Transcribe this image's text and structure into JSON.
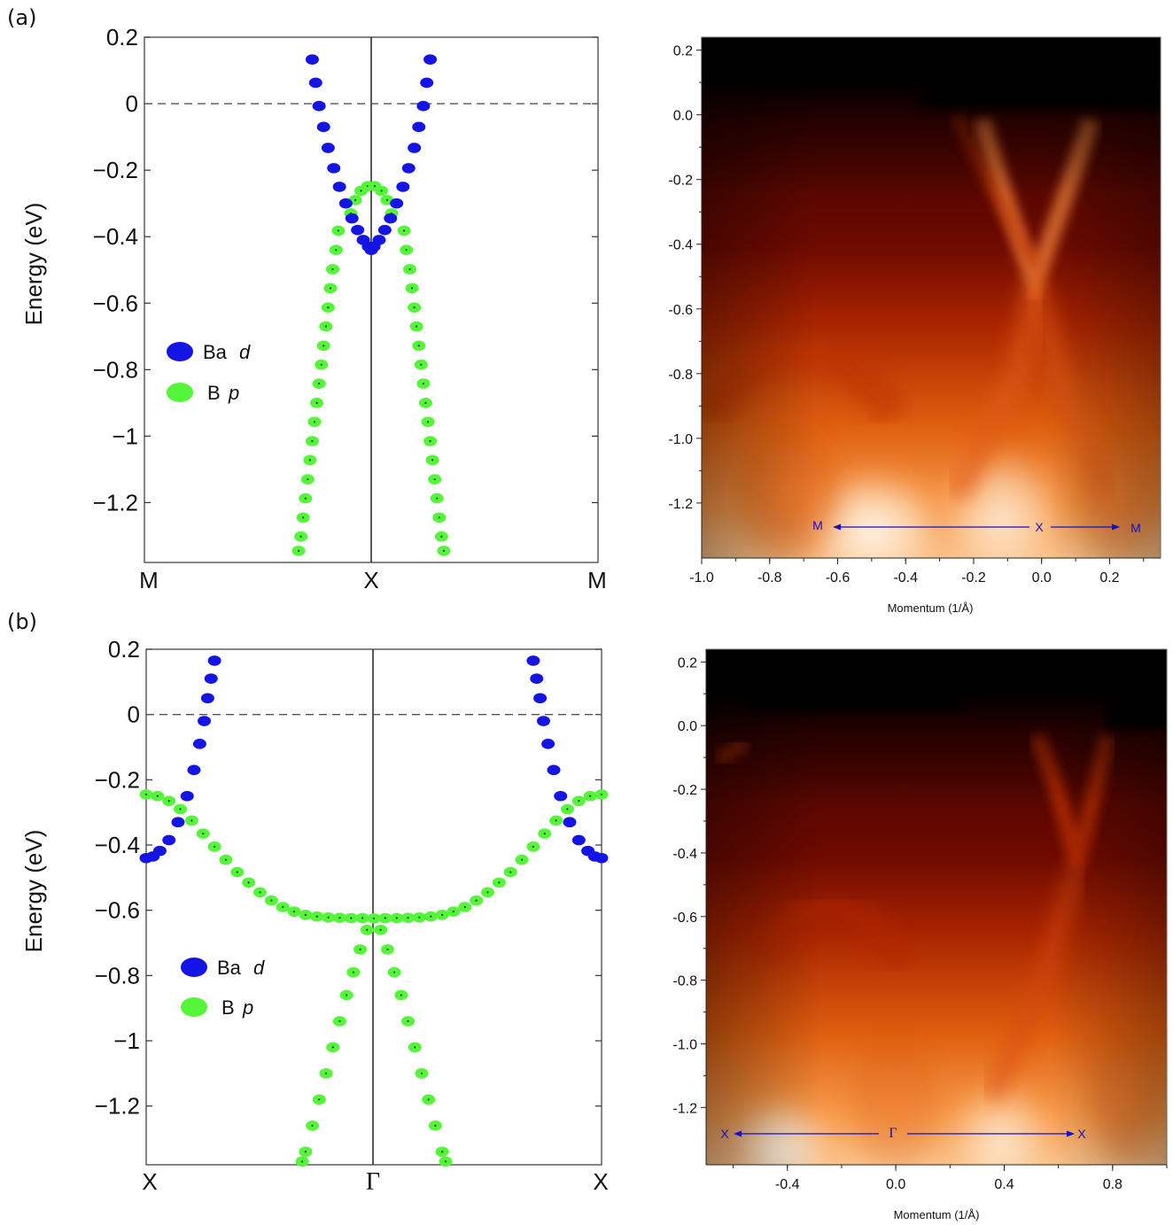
{
  "panel_labels": [
    "(a)",
    "(b)"
  ],
  "colors": {
    "ba_d": "#1414e6",
    "b_p": "#55f53a",
    "annotation": "#1010c0",
    "frame": "#444444"
  },
  "chart_data": [
    {
      "id": "a-calc",
      "type": "scatter",
      "ylabel": "Energy (eV)",
      "ylim": [
        -1.38,
        0.2
      ],
      "yticks": [
        0.2,
        0,
        -0.2,
        -0.4,
        -0.6,
        -0.8,
        -1,
        -1.2
      ],
      "ytick_labels": [
        "0.2",
        "0",
        "−0.2",
        "−0.4",
        "−0.6",
        "−0.8",
        "−1",
        "−1.2"
      ],
      "xlim": [
        -1,
        1
      ],
      "xtick_labels": [
        "M",
        "X",
        "M"
      ],
      "fermi_level": 0,
      "legend": [
        "Ba",
        "d",
        "B",
        "p"
      ],
      "legend_position": "middle-left",
      "series": [
        {
          "name": "Ba d",
          "points": [
            [
              -0.26,
              0.133
            ],
            [
              -0.245,
              0.063
            ],
            [
              -0.23,
              -0.007
            ],
            [
              -0.21,
              -0.07
            ],
            [
              -0.19,
              -0.133
            ],
            [
              -0.165,
              -0.194
            ],
            [
              -0.14,
              -0.25
            ],
            [
              -0.112,
              -0.3
            ],
            [
              -0.085,
              -0.345
            ],
            [
              -0.06,
              -0.38
            ],
            [
              -0.035,
              -0.41
            ],
            [
              -0.012,
              -0.43
            ],
            [
              0,
              -0.44
            ],
            [
              0.012,
              -0.43
            ],
            [
              0.035,
              -0.41
            ],
            [
              0.06,
              -0.38
            ],
            [
              0.085,
              -0.345
            ],
            [
              0.112,
              -0.3
            ],
            [
              0.14,
              -0.25
            ],
            [
              0.165,
              -0.194
            ],
            [
              0.19,
              -0.133
            ],
            [
              0.21,
              -0.07
            ],
            [
              0.23,
              -0.007
            ],
            [
              0.245,
              0.063
            ],
            [
              0.26,
              0.133
            ]
          ]
        },
        {
          "name": "B p",
          "points": [
            [
              -0.09,
              -0.33
            ],
            [
              -0.07,
              -0.29
            ],
            [
              -0.045,
              -0.262
            ],
            [
              -0.015,
              -0.248
            ],
            [
              0.015,
              -0.248
            ],
            [
              0.045,
              -0.262
            ],
            [
              0.07,
              -0.29
            ],
            [
              0.09,
              -0.33
            ],
            [
              -0.145,
              -0.382
            ],
            [
              -0.155,
              -0.44
            ],
            [
              -0.17,
              -0.498
            ],
            [
              -0.18,
              -0.555
            ],
            [
              -0.19,
              -0.613
            ],
            [
              -0.2,
              -0.67
            ],
            [
              -0.21,
              -0.728
            ],
            [
              -0.22,
              -0.785
            ],
            [
              -0.23,
              -0.842
            ],
            [
              -0.24,
              -0.9
            ],
            [
              -0.25,
              -0.957
            ],
            [
              -0.26,
              -1.015
            ],
            [
              -0.27,
              -1.072
            ],
            [
              -0.28,
              -1.13
            ],
            [
              -0.29,
              -1.187
            ],
            [
              -0.3,
              -1.245
            ],
            [
              -0.31,
              -1.302
            ],
            [
              -0.32,
              -1.345
            ],
            [
              0.145,
              -0.382
            ],
            [
              0.155,
              -0.44
            ],
            [
              0.17,
              -0.498
            ],
            [
              0.18,
              -0.555
            ],
            [
              0.19,
              -0.613
            ],
            [
              0.2,
              -0.67
            ],
            [
              0.21,
              -0.728
            ],
            [
              0.22,
              -0.785
            ],
            [
              0.23,
              -0.842
            ],
            [
              0.24,
              -0.9
            ],
            [
              0.25,
              -0.957
            ],
            [
              0.26,
              -1.015
            ],
            [
              0.27,
              -1.072
            ],
            [
              0.28,
              -1.13
            ],
            [
              0.29,
              -1.187
            ],
            [
              0.3,
              -1.245
            ],
            [
              0.31,
              -1.302
            ],
            [
              0.32,
              -1.345
            ]
          ]
        }
      ]
    },
    {
      "id": "a-arpes",
      "type": "heatmap",
      "xlabel": "Momentum (1/Å)",
      "xlim": [
        -1.0,
        0.35
      ],
      "ylim": [
        -1.37,
        0.24
      ],
      "xticks": [
        -1.0,
        -0.8,
        -0.6,
        -0.4,
        -0.2,
        0.0,
        0.2
      ],
      "xtick_labels": [
        "-1.0",
        "-0.8",
        "-0.6",
        "-0.4",
        "-0.2",
        "0.0",
        "0.2"
      ],
      "yticks": [
        0.2,
        0.0,
        -0.2,
        -0.4,
        -0.6,
        -0.8,
        -1.0,
        -1.2
      ],
      "ytick_labels": [
        "0.2",
        "0.0",
        "-0.2",
        "-0.4",
        "-0.6",
        "-0.8",
        "-1.0",
        "-1.2"
      ],
      "annotations": [
        {
          "text": "M",
          "x": -0.66,
          "y": -1.26
        },
        {
          "text": "X",
          "x": -0.01,
          "y": -1.26
        },
        {
          "text": "M",
          "x": 0.27,
          "y": -1.26
        }
      ]
    },
    {
      "id": "b-calc",
      "type": "scatter",
      "ylabel": "Energy (eV)",
      "ylim": [
        -1.38,
        0.2
      ],
      "yticks": [
        0.2,
        0,
        -0.2,
        -0.4,
        -0.6,
        -0.8,
        -1,
        -1.2
      ],
      "ytick_labels": [
        "0.2",
        "0",
        "−0.2",
        "−0.4",
        "−0.6",
        "−0.8",
        "−1",
        "−1.2"
      ],
      "xlim": [
        -1,
        1
      ],
      "xtick_labels": [
        "X",
        "Γ",
        "X"
      ],
      "fermi_level": 0,
      "legend": [
        "Ba",
        "d",
        "B",
        "p"
      ],
      "legend_position": "middle-left",
      "series": [
        {
          "name": "Ba d",
          "points": [
            [
              -1,
              -0.44
            ],
            [
              -0.97,
              -0.435
            ],
            [
              -0.94,
              -0.418
            ],
            [
              -0.9,
              -0.385
            ],
            [
              -0.86,
              -0.33
            ],
            [
              -0.82,
              -0.25
            ],
            [
              -0.79,
              -0.17
            ],
            [
              -0.765,
              -0.09
            ],
            [
              -0.745,
              -0.02
            ],
            [
              -0.73,
              0.05
            ],
            [
              -0.715,
              0.11
            ],
            [
              -0.7,
              0.165
            ],
            [
              0.7,
              0.165
            ],
            [
              0.715,
              0.11
            ],
            [
              0.73,
              0.05
            ],
            [
              0.745,
              -0.02
            ],
            [
              0.765,
              -0.09
            ],
            [
              0.79,
              -0.17
            ],
            [
              0.82,
              -0.25
            ],
            [
              0.86,
              -0.33
            ],
            [
              0.9,
              -0.385
            ],
            [
              0.94,
              -0.418
            ],
            [
              0.97,
              -0.435
            ],
            [
              1,
              -0.44
            ]
          ]
        },
        {
          "name": "B p",
          "points": [
            [
              -1,
              -0.245
            ],
            [
              -0.95,
              -0.25
            ],
            [
              -0.9,
              -0.265
            ],
            [
              -0.85,
              -0.29
            ],
            [
              -0.8,
              -0.325
            ],
            [
              -0.75,
              -0.365
            ],
            [
              -0.7,
              -0.405
            ],
            [
              -0.65,
              -0.445
            ],
            [
              -0.6,
              -0.483
            ],
            [
              -0.55,
              -0.515
            ],
            [
              -0.5,
              -0.545
            ],
            [
              -0.45,
              -0.57
            ],
            [
              -0.4,
              -0.59
            ],
            [
              -0.35,
              -0.604
            ],
            [
              -0.3,
              -0.614
            ],
            [
              -0.25,
              -0.619
            ],
            [
              -0.2,
              -0.622
            ],
            [
              -0.15,
              -0.623
            ],
            [
              -0.1,
              -0.624
            ],
            [
              -0.05,
              -0.624
            ],
            [
              0,
              -0.625
            ],
            [
              0.05,
              -0.624
            ],
            [
              0.1,
              -0.624
            ],
            [
              0.15,
              -0.623
            ],
            [
              0.2,
              -0.622
            ],
            [
              0.25,
              -0.619
            ],
            [
              0.3,
              -0.614
            ],
            [
              0.35,
              -0.604
            ],
            [
              0.4,
              -0.59
            ],
            [
              0.45,
              -0.57
            ],
            [
              0.5,
              -0.545
            ],
            [
              0.55,
              -0.515
            ],
            [
              0.6,
              -0.483
            ],
            [
              0.65,
              -0.445
            ],
            [
              0.7,
              -0.405
            ],
            [
              0.75,
              -0.365
            ],
            [
              0.8,
              -0.325
            ],
            [
              0.85,
              -0.29
            ],
            [
              0.9,
              -0.265
            ],
            [
              0.95,
              -0.25
            ],
            [
              1,
              -0.245
            ],
            [
              -0.03,
              -0.66
            ],
            [
              -0.06,
              -0.72
            ],
            [
              -0.09,
              -0.79
            ],
            [
              -0.12,
              -0.86
            ],
            [
              -0.15,
              -0.94
            ],
            [
              -0.18,
              -1.02
            ],
            [
              -0.21,
              -1.1
            ],
            [
              -0.24,
              -1.18
            ],
            [
              -0.27,
              -1.26
            ],
            [
              -0.3,
              -1.34
            ],
            [
              -0.315,
              -1.37
            ],
            [
              0.03,
              -0.66
            ],
            [
              0.06,
              -0.72
            ],
            [
              0.09,
              -0.79
            ],
            [
              0.12,
              -0.86
            ],
            [
              0.15,
              -0.94
            ],
            [
              0.18,
              -1.02
            ],
            [
              0.21,
              -1.1
            ],
            [
              0.24,
              -1.18
            ],
            [
              0.27,
              -1.26
            ],
            [
              0.3,
              -1.34
            ],
            [
              0.315,
              -1.37
            ]
          ]
        }
      ]
    },
    {
      "id": "b-arpes",
      "type": "heatmap",
      "xlabel": "Momentum (1/Å)",
      "xlim": [
        -0.7,
        1.0
      ],
      "ylim": [
        -1.38,
        0.24
      ],
      "xticks": [
        -0.4,
        0.0,
        0.4,
        0.8
      ],
      "xtick_labels": [
        "-0.4",
        "0.0",
        "0.4",
        "0.8"
      ],
      "yticks": [
        0.2,
        0.0,
        -0.2,
        -0.4,
        -0.6,
        -0.8,
        -1.0,
        -1.2
      ],
      "ytick_labels": [
        "0.2",
        "0.0",
        "-0.2",
        "-0.4",
        "-0.6",
        "-0.8",
        "-1.0",
        "-1.2"
      ],
      "annotations": [
        {
          "text": "X",
          "x": -0.63,
          "y": -1.26
        },
        {
          "text": "Γ",
          "x": -0.01,
          "y": -1.26
        },
        {
          "text": "X",
          "x": 0.69,
          "y": -1.26
        }
      ]
    }
  ]
}
